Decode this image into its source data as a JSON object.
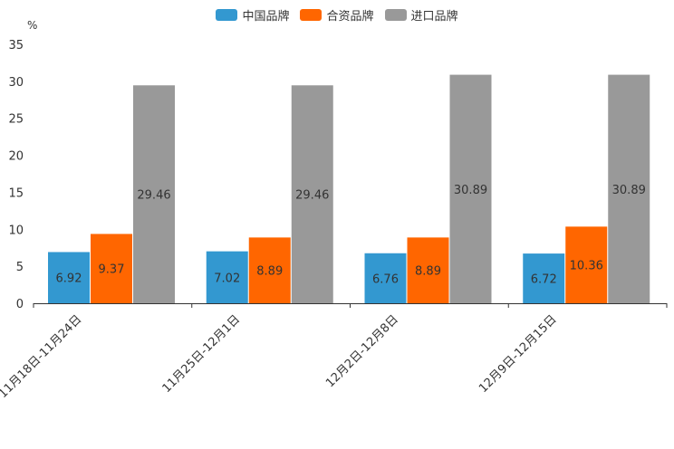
{
  "chart_data": {
    "type": "bar",
    "unit": "%",
    "categories": [
      "11月18日-11月24日",
      "11月25日-12月1日",
      "12月2日-12月8日",
      "12月9日-12月15日"
    ],
    "series": [
      {
        "name": "中国品牌",
        "color": "#3398d0",
        "values": [
          6.92,
          7.02,
          6.76,
          6.72
        ],
        "labels": [
          "6.92",
          "7.02",
          "6.76",
          "6.72"
        ]
      },
      {
        "name": "合资品牌",
        "color": "#ff6600",
        "values": [
          9.37,
          8.89,
          8.89,
          10.36
        ],
        "labels": [
          "9.37",
          "8.89",
          "8.89",
          "10.36"
        ]
      },
      {
        "name": "进口品牌",
        "color": "#999999",
        "values": [
          29.46,
          29.46,
          30.89,
          30.89
        ],
        "labels": [
          "29.46",
          "29.46",
          "30.89",
          "30.89"
        ]
      }
    ],
    "ylim": [
      0,
      35
    ],
    "yticks": [
      "0",
      "5",
      "10",
      "15",
      "20",
      "25",
      "30",
      "35"
    ],
    "legend_position": "top-center",
    "grid": false
  }
}
